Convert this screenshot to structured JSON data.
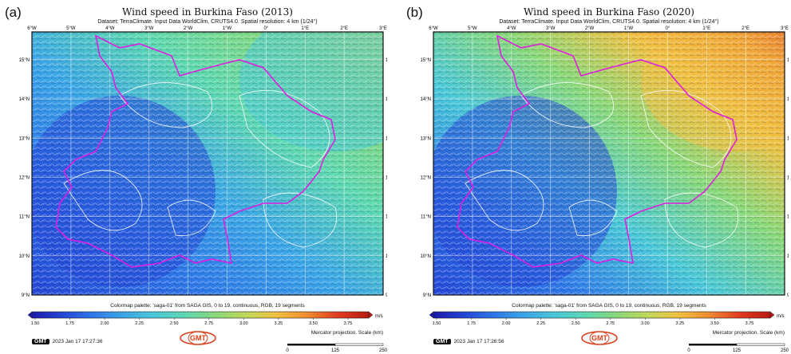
{
  "colors": {
    "border_magenta": "#e01ee0",
    "contour_white": "#ffffff",
    "palette": [
      "#1a1aa8",
      "#2446d6",
      "#2e78e8",
      "#3aa6e6",
      "#48c8d8",
      "#5cd8b0",
      "#88d878",
      "#c0d858",
      "#f0c040",
      "#f08a30",
      "#e03c20",
      "#b81a10"
    ]
  },
  "panels": [
    {
      "letter": "(a)",
      "title": "Wind speed in Burkina Faso (2013)",
      "subtitle": "Dataset: TerraClimate. Input Data WorldClim, CRUTS4.0. Spatial resolution: 4 km (1/24°)",
      "timestamp": "2023 Jan 17 17:27:36"
    },
    {
      "letter": "(b)",
      "title": "Wind speed in Burkina Faso (2020)",
      "subtitle": "Dataset: TerraClimate. Input Data WorldClim, CRUTS4.0. Spatial resolution: 4 km (1/24°)",
      "timestamp": "2023 Jan 17 17:26:56"
    }
  ],
  "lon_labels": [
    "6°W",
    "5°W",
    "4°W",
    "3°W",
    "2°W",
    "1°W",
    "0°",
    "1°E",
    "2°E",
    "3°E"
  ],
  "lat_labels": [
    "15°N",
    "14°N",
    "13°N",
    "12°N",
    "11°N",
    "10°N",
    "9°N"
  ],
  "colorbar": {
    "caption": "Colormap palette: 'saga-01' from SAGA GIS, 0 to 19, continuous, RGB, 19 segments",
    "ticks": [
      "1.50",
      "1.75",
      "2.00",
      "2.25",
      "2.50",
      "2.75",
      "3.00",
      "3.25",
      "3.50",
      "3.75"
    ],
    "unit": "m/s"
  },
  "scale": {
    "label": "Mercator projection. Scale (km)",
    "ticks": [
      "0",
      "125",
      "250"
    ]
  },
  "gmt_logo": "GMT"
}
